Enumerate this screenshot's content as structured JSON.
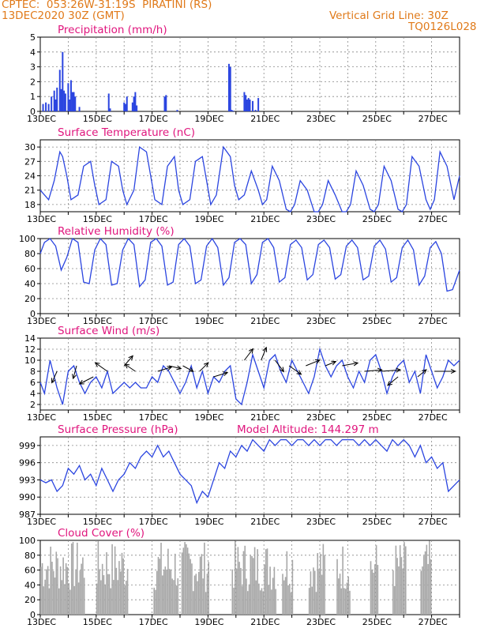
{
  "header": {
    "line1": "CPTEC:  053:26W-31:19S  PIRATINI (RS)",
    "line2": "13DEC2020 30Z (GMT)",
    "grid_note": "Vertical Grid Line: 30Z",
    "code": "TQ0126L028"
  },
  "colors": {
    "header": "#e07a1a",
    "titles": "#e0157d",
    "line": "#2b45e0",
    "cloud": "#a8a8a8"
  },
  "chart_data": [
    {
      "id": "precip",
      "type": "bar",
      "title": "Precipitation (mm/h)",
      "ylim": [
        0,
        5
      ],
      "yticks": [
        0,
        1,
        2,
        3,
        4,
        5
      ],
      "xticks": [
        "13DEC",
        "15DEC",
        "17DEC",
        "19DEC",
        "21DEC",
        "23DEC",
        "25DEC",
        "27DEC"
      ],
      "x_days": [
        0.1,
        0.2,
        0.3,
        0.4,
        0.5,
        0.55,
        0.6,
        0.7,
        0.75,
        0.8,
        0.85,
        0.9,
        1.0,
        1.05,
        1.1,
        1.15,
        1.2,
        1.25,
        1.4,
        2.45,
        2.5,
        3.0,
        3.05,
        3.1,
        3.3,
        3.35,
        3.4,
        3.45,
        4.45,
        4.5,
        4.9,
        6.75,
        6.8,
        6.85,
        6.9,
        7.3,
        7.35,
        7.4,
        7.45,
        7.5,
        7.6,
        7.7,
        7.8
      ],
      "values": [
        0.5,
        0.6,
        0.5,
        1.0,
        1.4,
        0.8,
        1.6,
        2.8,
        1.5,
        4.0,
        1.4,
        1.2,
        1.9,
        0.8,
        2.1,
        1.3,
        1.3,
        1.0,
        0.3,
        1.2,
        0.2,
        0.6,
        0.5,
        1.0,
        0.6,
        1.0,
        1.3,
        0.4,
        1.0,
        1.1,
        0.1,
        3.2,
        3.0,
        0.1,
        0.05,
        1.3,
        1.1,
        0.8,
        0.9,
        0.8,
        0.7,
        0.1,
        0.9
      ]
    },
    {
      "id": "temp",
      "type": "line",
      "title": "Surface Temperature (nC)",
      "ylim": [
        16.5,
        31.5
      ],
      "yticks": [
        18,
        21,
        24,
        27,
        30
      ],
      "xticks": [
        "13DEC",
        "15DEC",
        "17DEC",
        "19DEC",
        "21DEC",
        "23DEC",
        "25DEC",
        "27DEC"
      ],
      "x_days": [
        0,
        0.3,
        0.5,
        0.7,
        0.8,
        0.95,
        1.1,
        1.35,
        1.55,
        1.8,
        1.95,
        2.1,
        2.35,
        2.55,
        2.8,
        2.95,
        3.1,
        3.35,
        3.55,
        3.8,
        3.95,
        4.1,
        4.35,
        4.55,
        4.8,
        4.95,
        5.1,
        5.35,
        5.55,
        5.8,
        5.95,
        6.1,
        6.3,
        6.55,
        6.8,
        6.95,
        7.1,
        7.3,
        7.55,
        7.8,
        7.95,
        8.1,
        8.3,
        8.55,
        8.8,
        8.95,
        9.1,
        9.3,
        9.55,
        9.8,
        9.95,
        10.1,
        10.3,
        10.55,
        10.8,
        10.95,
        11.1,
        11.3,
        11.55,
        11.8,
        11.95,
        12.1,
        12.3,
        12.55,
        12.8,
        12.95,
        13.1,
        13.3,
        13.55,
        13.8,
        13.95,
        14.1,
        14.3,
        14.55,
        14.8,
        15.0
      ],
      "values": [
        21,
        19,
        23,
        29,
        28,
        24,
        19,
        20,
        26,
        27,
        22,
        18,
        19,
        27,
        26,
        21,
        18,
        21,
        30,
        29,
        24,
        19,
        18,
        26,
        28,
        21,
        18,
        19,
        27,
        28,
        23,
        18,
        20,
        30,
        28,
        22,
        19,
        20,
        25,
        21,
        18,
        19,
        26,
        23,
        17,
        16,
        18,
        23,
        21,
        16,
        16,
        18,
        23,
        20,
        16,
        16,
        18,
        25,
        22,
        17,
        16,
        18,
        26,
        23,
        17,
        16,
        18,
        28,
        26,
        19,
        17,
        19,
        29,
        26,
        19,
        24
      ]
    },
    {
      "id": "rh",
      "type": "line",
      "title": "Relative Humidity (%)",
      "ylim": [
        0,
        100
      ],
      "yticks": [
        0,
        20,
        40,
        60,
        80,
        100
      ],
      "xticks": [
        "13DEC",
        "15DEC",
        "17DEC",
        "19DEC",
        "21DEC",
        "23DEC",
        "25DEC",
        "27DEC"
      ],
      "x_days": [
        0,
        0.15,
        0.35,
        0.55,
        0.75,
        0.95,
        1.15,
        1.35,
        1.55,
        1.75,
        1.95,
        2.15,
        2.35,
        2.55,
        2.75,
        2.95,
        3.15,
        3.35,
        3.55,
        3.75,
        3.95,
        4.15,
        4.35,
        4.55,
        4.75,
        4.95,
        5.15,
        5.35,
        5.55,
        5.75,
        5.95,
        6.15,
        6.35,
        6.55,
        6.75,
        6.95,
        7.15,
        7.35,
        7.55,
        7.75,
        7.95,
        8.15,
        8.35,
        8.55,
        8.75,
        8.95,
        9.15,
        9.35,
        9.55,
        9.75,
        9.95,
        10.15,
        10.35,
        10.55,
        10.75,
        10.95,
        11.15,
        11.35,
        11.55,
        11.75,
        11.95,
        12.15,
        12.35,
        12.55,
        12.75,
        12.95,
        13.15,
        13.35,
        13.55,
        13.75,
        13.95,
        14.15,
        14.35,
        14.55,
        14.75,
        15.0
      ],
      "values": [
        80,
        95,
        100,
        90,
        58,
        75,
        100,
        95,
        42,
        40,
        85,
        100,
        92,
        38,
        40,
        85,
        100,
        92,
        36,
        45,
        95,
        100,
        90,
        38,
        42,
        92,
        100,
        90,
        40,
        45,
        90,
        100,
        88,
        38,
        48,
        95,
        100,
        92,
        40,
        52,
        95,
        100,
        88,
        42,
        48,
        92,
        98,
        88,
        45,
        52,
        92,
        98,
        88,
        46,
        52,
        90,
        98,
        88,
        45,
        50,
        90,
        98,
        86,
        42,
        48,
        88,
        98,
        85,
        38,
        50,
        88,
        96,
        80,
        30,
        32,
        58
      ]
    },
    {
      "id": "wind",
      "type": "line",
      "title": "Surface Wind (m/s)",
      "ylim": [
        1,
        14
      ],
      "yticks": [
        2,
        4,
        6,
        8,
        10,
        12,
        14
      ],
      "xticks": [
        "13DEC",
        "15DEC",
        "17DEC",
        "19DEC",
        "21DEC",
        "23DEC",
        "25DEC",
        "27DEC"
      ],
      "x_days": [
        0,
        0.15,
        0.35,
        0.6,
        0.8,
        1.0,
        1.2,
        1.4,
        1.6,
        1.8,
        2.0,
        2.2,
        2.4,
        2.6,
        2.8,
        3.0,
        3.2,
        3.4,
        3.6,
        3.8,
        4.0,
        4.2,
        4.4,
        4.6,
        4.8,
        5.0,
        5.2,
        5.4,
        5.6,
        5.8,
        6.0,
        6.2,
        6.4,
        6.6,
        6.8,
        7.0,
        7.2,
        7.4,
        7.6,
        7.8,
        8.0,
        8.2,
        8.4,
        8.6,
        8.8,
        9.0,
        9.2,
        9.4,
        9.6,
        9.8,
        10.0,
        10.2,
        10.4,
        10.6,
        10.8,
        11.0,
        11.2,
        11.4,
        11.6,
        11.8,
        12.0,
        12.2,
        12.4,
        12.6,
        12.8,
        13.0,
        13.2,
        13.4,
        13.6,
        13.8,
        14.0,
        14.2,
        14.4,
        14.6,
        14.8,
        15.0
      ],
      "values": [
        6,
        4,
        10,
        5,
        2,
        8,
        9,
        6,
        4,
        6,
        7,
        5,
        8,
        4,
        5,
        6,
        5,
        6,
        5,
        5,
        7,
        6,
        9,
        8,
        6,
        4,
        6,
        9,
        5,
        8,
        4,
        7,
        6,
        8,
        9,
        3,
        2,
        6,
        11,
        8,
        5,
        10,
        11,
        8,
        6,
        10,
        8,
        6,
        4,
        7,
        12,
        9,
        7,
        9,
        10,
        7,
        5,
        8,
        6,
        10,
        11,
        8,
        4,
        7,
        9,
        10,
        6,
        8,
        4,
        11,
        8,
        5,
        7,
        10,
        9,
        10
      ]
    },
    {
      "id": "pres",
      "type": "line",
      "title": "Surface Pressure (hPa)",
      "annotation": "Model Altitude: 144.297 m",
      "ylim": [
        987,
        1000.5
      ],
      "yticks": [
        987,
        990,
        993,
        996,
        999
      ],
      "xticks": [
        "13DEC",
        "15DEC",
        "17DEC",
        "19DEC",
        "21DEC",
        "23DEC",
        "25DEC",
        "27DEC"
      ],
      "x_days": [
        0,
        0.2,
        0.4,
        0.6,
        0.8,
        1.0,
        1.2,
        1.4,
        1.6,
        1.8,
        2.0,
        2.2,
        2.4,
        2.6,
        2.8,
        3.0,
        3.2,
        3.4,
        3.6,
        3.8,
        4.0,
        4.2,
        4.4,
        4.6,
        4.8,
        5.0,
        5.2,
        5.4,
        5.6,
        5.8,
        6.0,
        6.2,
        6.4,
        6.6,
        6.8,
        7.0,
        7.2,
        7.4,
        7.6,
        7.8,
        8.0,
        8.2,
        8.4,
        8.6,
        8.8,
        9.0,
        9.2,
        9.4,
        9.6,
        9.8,
        10.0,
        10.2,
        10.4,
        10.6,
        10.8,
        11.0,
        11.2,
        11.4,
        11.6,
        11.8,
        12.0,
        12.2,
        12.4,
        12.6,
        12.8,
        13.0,
        13.2,
        13.4,
        13.6,
        13.8,
        14.0,
        14.2,
        14.4,
        14.6,
        14.8,
        15.0
      ],
      "values": [
        993,
        992.5,
        993,
        991,
        992,
        995,
        994,
        995.5,
        993,
        994,
        992,
        995,
        993,
        991,
        993,
        994,
        996,
        995,
        997,
        998,
        997,
        999,
        997,
        998,
        996,
        994,
        993,
        992,
        989,
        991,
        990,
        993,
        996,
        995,
        998,
        997,
        999,
        998,
        1000,
        999,
        998,
        1000,
        999,
        1000,
        1000,
        999,
        1000,
        1000,
        999,
        1000,
        999,
        1000,
        1000,
        999,
        1000,
        1000,
        1000,
        999,
        1000,
        999,
        1000,
        999,
        998,
        1000,
        999,
        1000,
        999,
        997,
        999,
        996,
        997,
        995,
        996,
        991,
        992,
        993
      ]
    },
    {
      "id": "cloud",
      "type": "bar",
      "title": "Cloud Cover (%)",
      "ylim": [
        0,
        100
      ],
      "yticks": [
        0,
        20,
        40,
        60,
        80,
        100
      ],
      "xticks": [
        "13DEC",
        "15DEC",
        "17DEC",
        "19DEC",
        "21DEC",
        "23DEC",
        "25DEC",
        "27DEC"
      ]
    }
  ]
}
